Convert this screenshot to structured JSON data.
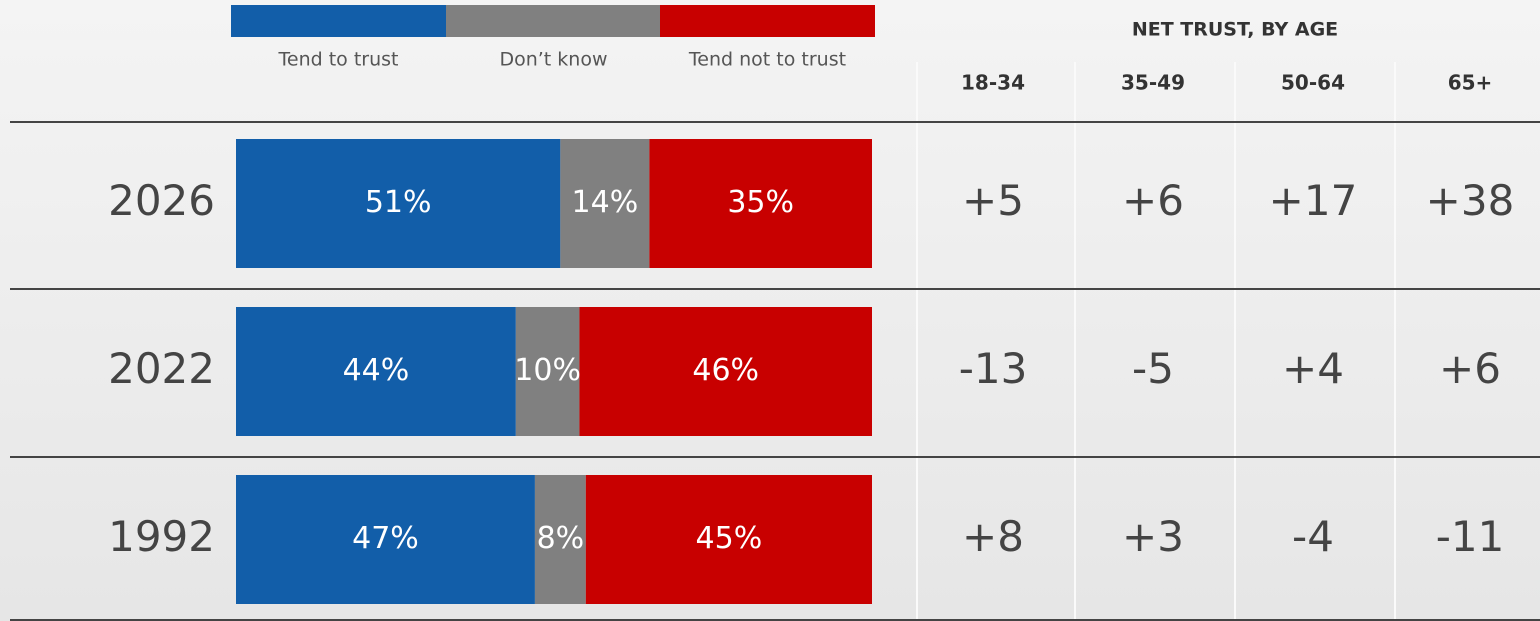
{
  "chart_data": {
    "type": "stacked-bar-horizontal",
    "categories": [
      "2026",
      "2022",
      "1992"
    ],
    "xlim": [
      0,
      100
    ],
    "series": [
      {
        "name": "Tend to trust",
        "color": "#125ea9",
        "values": [
          51,
          44,
          47
        ],
        "value_labels": [
          "51%",
          "44%",
          "47%"
        ]
      },
      {
        "name": "Don’t know",
        "color": "#808080",
        "values": [
          14,
          10,
          8
        ],
        "value_labels": [
          "14%",
          "10%",
          "8%"
        ]
      },
      {
        "name": "Tend not to trust",
        "color": "#c80000",
        "values": [
          35,
          46,
          45
        ],
        "value_labels": [
          "35%",
          "46%",
          "45%"
        ]
      }
    ]
  },
  "table": {
    "title": "NET TRUST, BY AGE",
    "columns": [
      "18-34",
      "35-49",
      "50-64",
      "65+"
    ],
    "rows": [
      [
        "+5",
        "+6",
        "+17",
        "+38"
      ],
      [
        "-13",
        "-5",
        "+4",
        "+6"
      ],
      [
        "+8",
        "+3",
        "-4",
        "-11"
      ]
    ]
  }
}
